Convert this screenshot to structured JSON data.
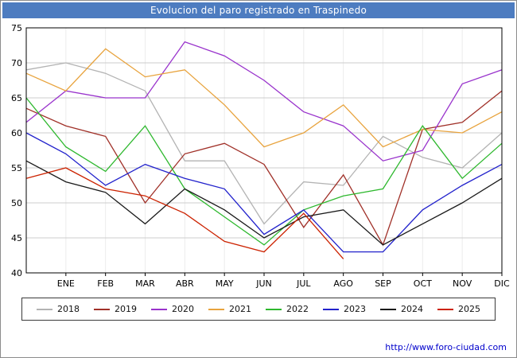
{
  "title": "Evolucion del paro registrado en Traspinedo",
  "footer": {
    "url": "http://www.foro-ciudad.com"
  },
  "colors": {
    "titlebar": "#4d7cc0",
    "grid": "#cccccc",
    "minor_grid": "#ececec",
    "plot_border": "#000000",
    "axis_text": "#000000",
    "url": "#0000cc"
  },
  "chart_data": {
    "type": "line",
    "title": "Evolucion del paro registrado en Traspinedo",
    "categories": [
      "ENE",
      "FEB",
      "MAR",
      "ABR",
      "MAY",
      "JUN",
      "JUL",
      "AGO",
      "SEP",
      "OCT",
      "NOV",
      "DIC"
    ],
    "ylim": [
      40,
      75
    ],
    "yticks": [
      40,
      45,
      50,
      55,
      60,
      65,
      70,
      75
    ],
    "grid": true,
    "legend_position": "bottom",
    "note": "Each series has 13 values: the first is the lead-in value at the left axis edge, followed by the 12 monthly values ENE-DIC. 2025 ends at AGO.",
    "series": [
      {
        "name": "2018",
        "color": "#b3b3b3",
        "values": [
          69,
          70,
          68.5,
          66,
          56,
          56,
          47,
          53,
          52.5,
          59.5,
          56.5,
          55,
          60
        ]
      },
      {
        "name": "2019",
        "color": "#a03028",
        "values": [
          63.5,
          61,
          59.5,
          50,
          57,
          58.5,
          55.5,
          46.5,
          54,
          44,
          60.5,
          61.5,
          66
        ]
      },
      {
        "name": "2020",
        "color": "#9933cc",
        "values": [
          61.5,
          66,
          65,
          65,
          73,
          71,
          67.5,
          63,
          61,
          56,
          57.5,
          67,
          69
        ]
      },
      {
        "name": "2021",
        "color": "#e8a33d",
        "values": [
          68.5,
          66,
          72,
          68,
          69,
          64,
          58,
          60,
          64,
          58,
          60.5,
          60,
          63
        ]
      },
      {
        "name": "2022",
        "color": "#2eb82e",
        "values": [
          65,
          58,
          54.5,
          61,
          52,
          48,
          44,
          49,
          51,
          52,
          61,
          53.5,
          58.5
        ]
      },
      {
        "name": "2023",
        "color": "#2222cc",
        "values": [
          60,
          57,
          52.5,
          55.5,
          53.5,
          52,
          45.5,
          49,
          43,
          43,
          49,
          52.5,
          55.5
        ]
      },
      {
        "name": "2024",
        "color": "#1a1a1a",
        "values": [
          56,
          53,
          51.5,
          47,
          52,
          49,
          45,
          48,
          49,
          44,
          47,
          50,
          53.5
        ]
      },
      {
        "name": "2025",
        "color": "#cc2200",
        "values": [
          53.5,
          55,
          52,
          51,
          48.5,
          44.5,
          43,
          48.5,
          42
        ]
      }
    ]
  }
}
